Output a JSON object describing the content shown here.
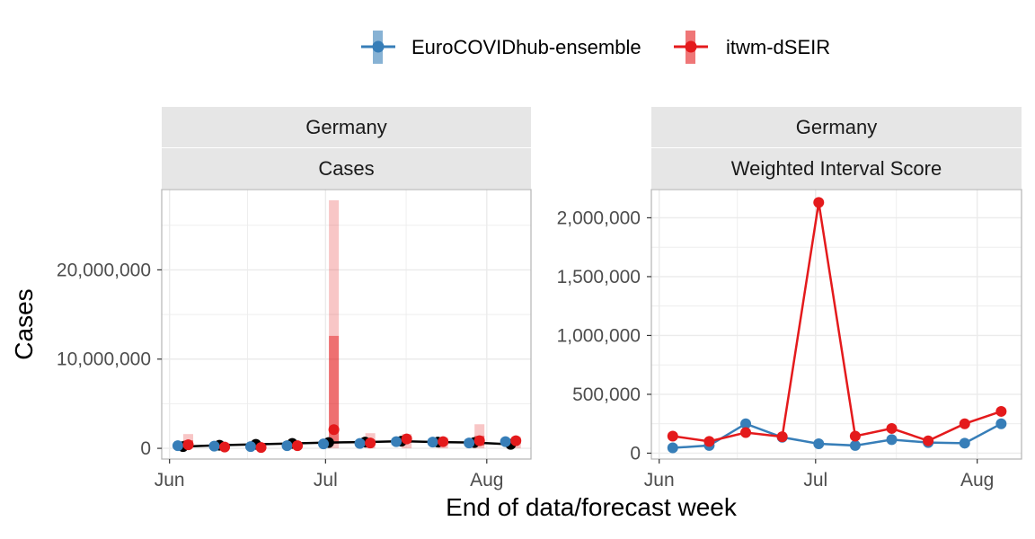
{
  "legend": {
    "series_a": "EuroCOVIDhub-ensemble",
    "series_b": "itwm-dSEIR"
  },
  "xlabel": "End of data/forecast week",
  "ylabel": "Cases",
  "colors": {
    "ensemble": "#377eb8",
    "itwm": "#e41a1c",
    "observed": "#000000",
    "strip": "#e6e6e6",
    "grid": "#ebebeb",
    "panel_border": "#b3b3b3"
  },
  "chart_data": [
    {
      "type": "line",
      "panel_labels": [
        "Germany",
        "Cases"
      ],
      "x_ticks": [
        "Jun",
        "Jul",
        "Aug"
      ],
      "x_tick_days": [
        0,
        30,
        61
      ],
      "xlim_days": [
        -1.5,
        69.5
      ],
      "y_ticks": [
        0,
        10000000,
        20000000
      ],
      "y_tick_labels": [
        "0",
        "10,000,000",
        "20,000,000"
      ],
      "ylim": [
        -1200000,
        29000000
      ],
      "observed": {
        "x_days": [
          2.6,
          9.6,
          16.6,
          23.6,
          30.6,
          37.6,
          44.6,
          51.6,
          58.6,
          65.6
        ],
        "values": [
          200000,
          350000,
          450000,
          550000,
          650000,
          700000,
          800000,
          700000,
          650000,
          450000
        ]
      },
      "series": [
        {
          "name": "EuroCOVIDhub-ensemble",
          "x_days": [
            1.6,
            8.6,
            15.6,
            22.6,
            29.6,
            36.6,
            43.6,
            50.6,
            57.6,
            64.6
          ],
          "values": [
            300000,
            250000,
            200000,
            300000,
            500000,
            550000,
            750000,
            700000,
            600000,
            750000
          ],
          "interval_outer": [
            [
              100000,
              500000
            ],
            [
              80000,
              450000
            ],
            [
              50000,
              400000
            ],
            [
              100000,
              550000
            ],
            [
              200000,
              800000
            ],
            [
              250000,
              900000
            ],
            [
              350000,
              1100000
            ],
            [
              350000,
              1100000
            ],
            [
              250000,
              1000000
            ],
            [
              350000,
              1100000
            ]
          ],
          "interval_inner": [
            [
              200000,
              400000
            ],
            [
              160000,
              350000
            ],
            [
              120000,
              300000
            ],
            [
              200000,
              420000
            ],
            [
              350000,
              650000
            ],
            [
              400000,
              700000
            ],
            [
              550000,
              950000
            ],
            [
              520000,
              900000
            ],
            [
              450000,
              800000
            ],
            [
              550000,
              950000
            ]
          ]
        },
        {
          "name": "itwm-dSEIR",
          "x_days": [
            3.6,
            10.6,
            17.6,
            24.6,
            31.6,
            38.6,
            45.6,
            52.6,
            59.6,
            66.6
          ],
          "values": [
            400000,
            150000,
            100000,
            300000,
            2100000,
            600000,
            1050000,
            750000,
            850000,
            850000
          ],
          "interval_outer": [
            [
              0,
              1600000
            ],
            [
              0,
              600000
            ],
            [
              0,
              600000
            ],
            [
              0,
              700000
            ],
            [
              0,
              27800000
            ],
            [
              0,
              1700000
            ],
            [
              0,
              1600000
            ],
            [
              0,
              1200000
            ],
            [
              0,
              2700000
            ],
            [
              0,
              1300000
            ]
          ],
          "interval_inner": [
            [
              100000,
              900000
            ],
            [
              50000,
              350000
            ],
            [
              30000,
              300000
            ],
            [
              100000,
              500000
            ],
            [
              500000,
              12600000
            ],
            [
              300000,
              1000000
            ],
            [
              600000,
              1400000
            ],
            [
              400000,
              1000000
            ],
            [
              300000,
              1400000
            ],
            [
              500000,
              1100000
            ]
          ]
        }
      ]
    },
    {
      "type": "line",
      "panel_labels": [
        "Germany",
        "Weighted Interval Score"
      ],
      "x_ticks": [
        "Jun",
        "Jul",
        "Aug"
      ],
      "x_tick_days": [
        0,
        30,
        61
      ],
      "xlim_days": [
        -1.5,
        69.5
      ],
      "y_ticks": [
        0,
        500000,
        1000000,
        1500000,
        2000000
      ],
      "y_tick_labels": [
        "0",
        "500,000",
        "1,000,000",
        "1,500,000",
        "2,000,000"
      ],
      "ylim": [
        -50000,
        2240000
      ],
      "series": [
        {
          "name": "EuroCOVIDhub-ensemble",
          "x_days": [
            2.6,
            9.6,
            16.6,
            23.6,
            30.6,
            37.6,
            44.6,
            51.6,
            58.6,
            65.6
          ],
          "values": [
            45000,
            65000,
            250000,
            135000,
            80000,
            65000,
            115000,
            90000,
            85000,
            250000
          ]
        },
        {
          "name": "itwm-dSEIR",
          "x_days": [
            2.6,
            9.6,
            16.6,
            23.6,
            30.6,
            37.6,
            44.6,
            51.6,
            58.6,
            65.6
          ],
          "values": [
            145000,
            100000,
            175000,
            140000,
            2130000,
            145000,
            210000,
            105000,
            250000,
            355000
          ]
        }
      ]
    }
  ]
}
